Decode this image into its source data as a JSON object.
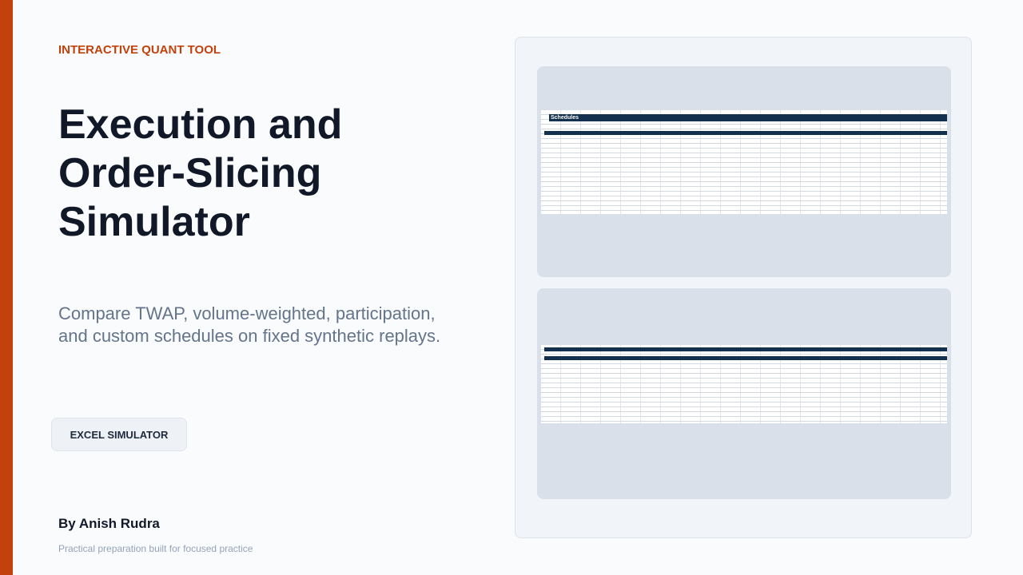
{
  "eyebrow": "INTERACTIVE QUANT TOOL",
  "title": "Execution and Order-Slicing Simulator",
  "subtitle": "Compare TWAP, volume-weighted, participation, and custom schedules on fixed synthetic replays.",
  "button": "EXCEL SIMULATOR",
  "author": "By Anish Rudra",
  "tagline": "Practical preparation built for focused practice",
  "preview": {
    "sheets": [
      {
        "title": "Schedules"
      }
    ]
  }
}
